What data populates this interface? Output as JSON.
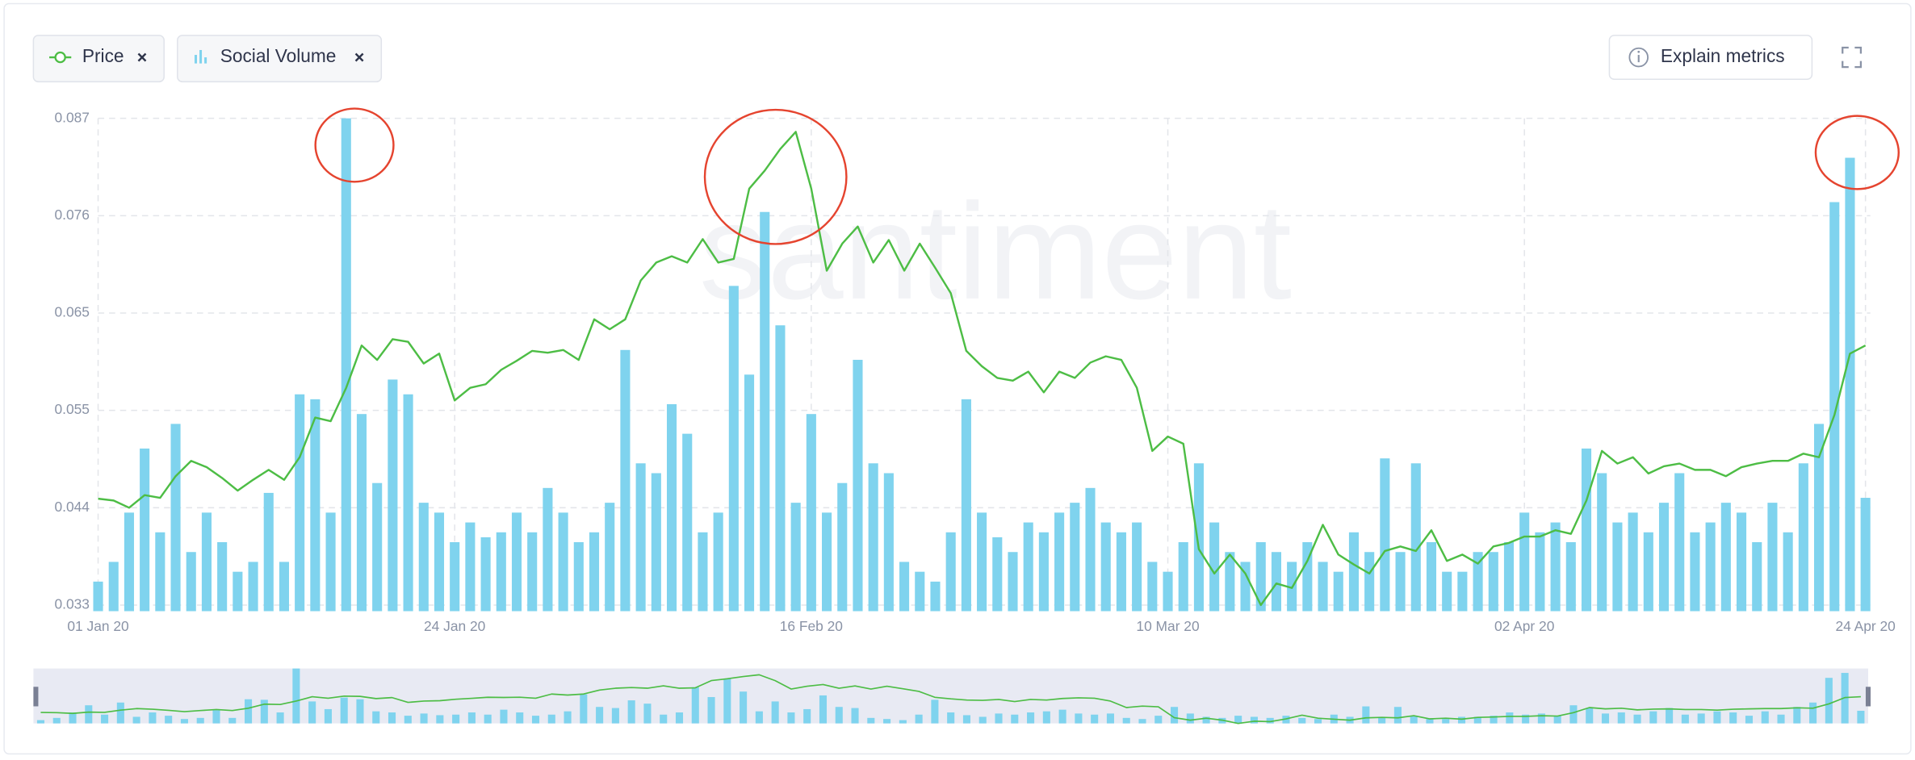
{
  "chart_data": {
    "type": "combo",
    "legend": [
      {
        "label": "Price"
      },
      {
        "label": "Social Volume"
      }
    ],
    "button": "Explain metrics",
    "watermark": "santiment",
    "categories": [
      "01 Jan 20",
      null,
      null,
      null,
      null,
      null,
      null,
      null,
      null,
      null,
      null,
      null,
      null,
      null,
      null,
      null,
      null,
      null,
      null,
      null,
      null,
      null,
      null,
      "24 Jan 20",
      null,
      null,
      null,
      null,
      null,
      null,
      null,
      null,
      null,
      null,
      null,
      null,
      null,
      null,
      null,
      null,
      null,
      null,
      null,
      null,
      null,
      null,
      "16 Feb 20",
      null,
      null,
      null,
      null,
      null,
      null,
      null,
      null,
      null,
      null,
      null,
      null,
      null,
      null,
      null,
      null,
      null,
      null,
      null,
      null,
      null,
      null,
      "10 Mar 20",
      null,
      null,
      null,
      null,
      null,
      null,
      null,
      null,
      null,
      null,
      null,
      null,
      null,
      null,
      null,
      null,
      null,
      null,
      null,
      null,
      null,
      null,
      "02 Apr 20",
      null,
      null,
      null,
      null,
      null,
      null,
      null,
      null,
      null,
      null,
      null,
      null,
      null,
      null,
      null,
      null,
      null,
      null,
      null,
      null,
      null,
      "24 Apr 20"
    ],
    "series": [
      {
        "name": "Price",
        "type": "line",
        "color": "#4dbd45",
        "values": [
          0.0448,
          0.0446,
          0.0438,
          0.0452,
          0.0449,
          0.0473,
          0.049,
          0.0483,
          0.0471,
          0.0457,
          0.0469,
          0.048,
          0.0469,
          0.0494,
          0.0538,
          0.0534,
          0.0571,
          0.0618,
          0.0602,
          0.0625,
          0.0622,
          0.0598,
          0.0609,
          0.0557,
          0.0571,
          0.0575,
          0.0591,
          0.0601,
          0.0612,
          0.061,
          0.0613,
          0.0602,
          0.0647,
          0.0636,
          0.0647,
          0.069,
          0.071,
          0.0717,
          0.071,
          0.0736,
          0.071,
          0.0714,
          0.0792,
          0.0812,
          0.0836,
          0.0855,
          0.0792,
          0.0701,
          0.0731,
          0.075,
          0.071,
          0.0735,
          0.0701,
          0.0731,
          0.0704,
          0.0676,
          0.0612,
          0.0595,
          0.0582,
          0.0579,
          0.0589,
          0.0566,
          0.0589,
          0.0582,
          0.0599,
          0.0606,
          0.0602,
          0.0571,
          0.0501,
          0.0517,
          0.0509,
          0.0392,
          0.0365,
          0.0386,
          0.0365,
          0.033,
          0.0354,
          0.0349,
          0.0379,
          0.0419,
          0.0386,
          0.0375,
          0.0365,
          0.039,
          0.0395,
          0.039,
          0.0413,
          0.0379,
          0.0386,
          0.0376,
          0.0395,
          0.0399,
          0.0406,
          0.0406,
          0.0413,
          0.0409,
          0.0446,
          0.0501,
          0.0487,
          0.0494,
          0.0476,
          0.0484,
          0.0487,
          0.048,
          0.048,
          0.0473,
          0.0483,
          0.0487,
          0.049,
          0.049,
          0.0498,
          0.0494,
          0.0541,
          0.0609,
          0.0618
        ]
      },
      {
        "name": "Social Volume",
        "type": "bar",
        "axis": "y2",
        "color": "#7fd3ee",
        "values": [
          6,
          10,
          20,
          33,
          16,
          38,
          12,
          20,
          14,
          8,
          10,
          24,
          10,
          44,
          43,
          20,
          100,
          40,
          26,
          47,
          44,
          22,
          20,
          14,
          18,
          15,
          16,
          20,
          16,
          25,
          20,
          14,
          16,
          22,
          53,
          30,
          28,
          42,
          36,
          16,
          20,
          66,
          48,
          81,
          58,
          22,
          40,
          20,
          26,
          51,
          30,
          28,
          10,
          8,
          6,
          16,
          43,
          20,
          15,
          12,
          18,
          16,
          20,
          22,
          25,
          18,
          16,
          18,
          10,
          8,
          14,
          30,
          18,
          12,
          10,
          14,
          12,
          10,
          14,
          10,
          8,
          16,
          12,
          31,
          12,
          30,
          14,
          8,
          8,
          12,
          12,
          14,
          20,
          16,
          18,
          14,
          33,
          28,
          18,
          20,
          16,
          22,
          28,
          16,
          18,
          22,
          20,
          14,
          22,
          16,
          30,
          38,
          83,
          92,
          23
        ]
      }
    ],
    "ylim": [
      0.033,
      0.087
    ],
    "yticks": [
      0.033,
      {
        "value": 0.0438,
        "label": "0.044"
      },
      {
        "value": 0.0546,
        "label": "0.055"
      },
      {
        "value": 0.0654,
        "label": "0.065"
      },
      {
        "value": 0.0762,
        "label": "0.076"
      },
      0.087
    ],
    "y2lim": [
      0,
      100
    ],
    "grid": true,
    "navigator": true
  }
}
